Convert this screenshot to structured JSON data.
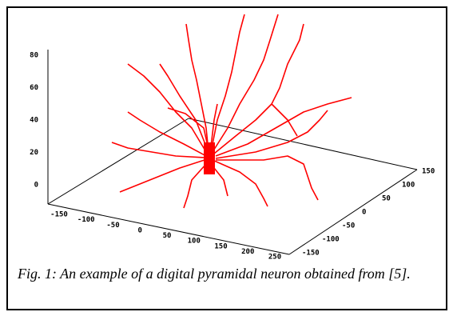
{
  "figure": {
    "z_ticks": [
      80,
      60,
      40,
      20,
      0
    ],
    "x_ticks": [
      -150,
      -100,
      -50,
      0,
      50,
      100,
      150,
      200,
      250
    ],
    "y_ticks": [
      150,
      100,
      50,
      0,
      -50,
      -100,
      -150
    ],
    "caption": "Fig. 1: An example of a digital pyramidal neuron obtained from [5]."
  }
}
